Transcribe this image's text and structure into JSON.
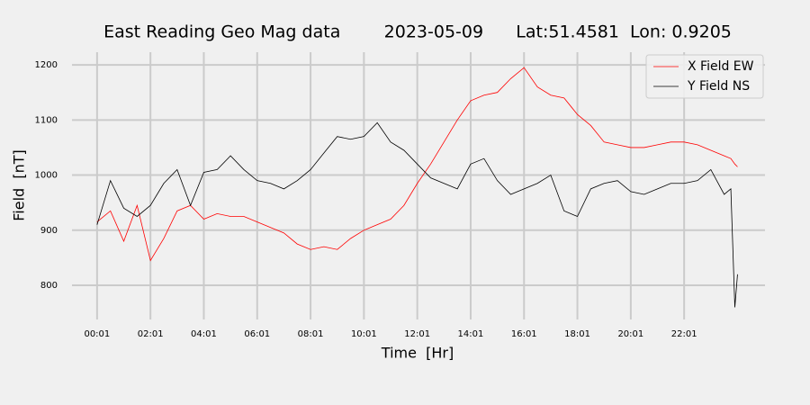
{
  "chart_data": {
    "type": "line",
    "title": "East Reading Geo Mag data        2023-05-09      Lat:51.4581  Lon: 0.9205",
    "xlabel": "Time  [Hr]",
    "ylabel": "Field  [nT]",
    "x": [
      0,
      0.5,
      1,
      1.5,
      2,
      2.5,
      3,
      3.5,
      4,
      4.5,
      5,
      5.5,
      6,
      6.5,
      7,
      7.5,
      8,
      8.5,
      9,
      9.5,
      10,
      10.5,
      11,
      11.5,
      12,
      12.5,
      13,
      13.5,
      14,
      14.5,
      15,
      15.5,
      16,
      16.5,
      17,
      17.5,
      18,
      18.5,
      19,
      19.5,
      20,
      20.5,
      21,
      21.5,
      22,
      22.5,
      23,
      23.5,
      23.75,
      23.9,
      24
    ],
    "series": [
      {
        "name": "X Field EW",
        "color": "#ff0000",
        "values": [
          915,
          935,
          880,
          945,
          845,
          885,
          935,
          945,
          920,
          930,
          925,
          925,
          915,
          905,
          895,
          875,
          865,
          870,
          865,
          885,
          900,
          910,
          920,
          945,
          985,
          1020,
          1060,
          1100,
          1135,
          1145,
          1150,
          1175,
          1195,
          1160,
          1145,
          1140,
          1110,
          1090,
          1060,
          1055,
          1050,
          1050,
          1055,
          1060,
          1060,
          1055,
          1045,
          1035,
          1030,
          1020,
          1015
        ]
      },
      {
        "name": "Y Field NS",
        "color": "#000000",
        "values": [
          910,
          990,
          940,
          925,
          945,
          985,
          1010,
          945,
          1005,
          1010,
          1035,
          1010,
          990,
          985,
          975,
          990,
          1010,
          1040,
          1070,
          1065,
          1070,
          1095,
          1060,
          1045,
          1020,
          995,
          985,
          975,
          1020,
          1030,
          990,
          965,
          975,
          985,
          1000,
          935,
          925,
          975,
          985,
          990,
          970,
          965,
          975,
          985,
          985,
          990,
          1010,
          965,
          975,
          760,
          820
        ]
      }
    ],
    "xlim": [
      -0.94,
      25.03
    ],
    "ylim": [
      738,
      1223
    ],
    "xticks": [
      {
        "value": 0,
        "label": "00:01"
      },
      {
        "value": 2,
        "label": "02:01"
      },
      {
        "value": 4,
        "label": "04:01"
      },
      {
        "value": 6,
        "label": "06:01"
      },
      {
        "value": 8,
        "label": "08:01"
      },
      {
        "value": 10,
        "label": "10:01"
      },
      {
        "value": 12,
        "label": "12:01"
      },
      {
        "value": 14,
        "label": "14:01"
      },
      {
        "value": 16,
        "label": "16:01"
      },
      {
        "value": 18,
        "label": "18:01"
      },
      {
        "value": 20,
        "label": "20:01"
      },
      {
        "value": 22,
        "label": "22:01"
      }
    ],
    "yticks": [
      800,
      900,
      1000,
      1100,
      1200
    ],
    "grid": true,
    "legend": "upper right"
  }
}
